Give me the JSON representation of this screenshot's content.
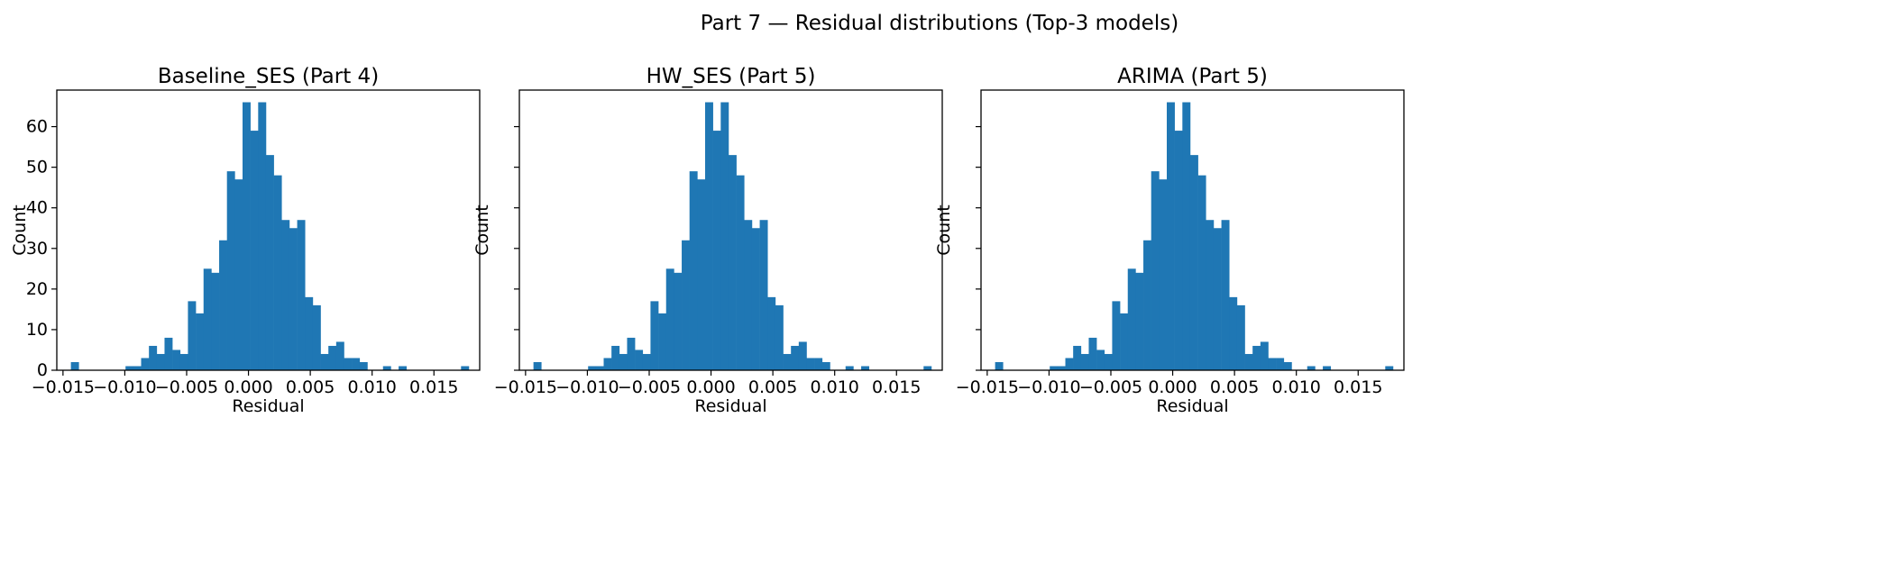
{
  "figure": {
    "suptitle": "Part 7 — Residual distributions (Top-3 models)"
  },
  "chart_data": [
    {
      "type": "bar",
      "subtype": "histogram",
      "title": "Baseline_SES (Part 4)",
      "xlabel": "Residual",
      "ylabel": "Count",
      "xlim": [
        -0.0155,
        0.0187
      ],
      "ylim": [
        0,
        69
      ],
      "xticks": [
        -0.015,
        -0.01,
        -0.005,
        0.0,
        0.005,
        0.01,
        0.015
      ],
      "xtick_labels": [
        "−0.015",
        "−0.010",
        "−0.005",
        "0.000",
        "0.005",
        "0.010",
        "0.015"
      ],
      "yticks": [
        0,
        10,
        20,
        30,
        40,
        50,
        60
      ],
      "ytick_labels": [
        "0",
        "10",
        "20",
        "30",
        "40",
        "50",
        "60"
      ],
      "show_yticklabels": true,
      "bin_start": -0.01436,
      "bin_width": 0.000631,
      "counts": [
        2,
        0,
        0,
        0,
        0,
        0,
        0,
        1,
        1,
        3,
        6,
        4,
        8,
        5,
        4,
        17,
        14,
        25,
        24,
        32,
        49,
        47,
        66,
        59,
        66,
        53,
        48,
        37,
        35,
        37,
        18,
        16,
        4,
        6,
        7,
        3,
        3,
        2,
        0,
        0,
        1,
        0,
        1,
        0,
        0,
        0,
        0,
        0,
        0,
        0,
        1
      ],
      "color": "#1f77b4"
    },
    {
      "type": "bar",
      "subtype": "histogram",
      "title": "HW_SES (Part 5)",
      "xlabel": "Residual",
      "ylabel": "Count",
      "xlim": [
        -0.0155,
        0.0187
      ],
      "ylim": [
        0,
        69
      ],
      "xticks": [
        -0.015,
        -0.01,
        -0.005,
        0.0,
        0.005,
        0.01,
        0.015
      ],
      "xtick_labels": [
        "−0.015",
        "−0.010",
        "−0.005",
        "0.000",
        "0.005",
        "0.010",
        "0.015"
      ],
      "yticks": [
        0,
        10,
        20,
        30,
        40,
        50,
        60
      ],
      "ytick_labels": [
        "0",
        "10",
        "20",
        "30",
        "40",
        "50",
        "60"
      ],
      "show_yticklabels": false,
      "bin_start": -0.01436,
      "bin_width": 0.000631,
      "counts": [
        2,
        0,
        0,
        0,
        0,
        0,
        0,
        1,
        1,
        3,
        6,
        4,
        8,
        5,
        4,
        17,
        14,
        25,
        24,
        32,
        49,
        47,
        66,
        59,
        66,
        53,
        48,
        37,
        35,
        37,
        18,
        16,
        4,
        6,
        7,
        3,
        3,
        2,
        0,
        0,
        1,
        0,
        1,
        0,
        0,
        0,
        0,
        0,
        0,
        0,
        1
      ],
      "color": "#1f77b4"
    },
    {
      "type": "bar",
      "subtype": "histogram",
      "title": "ARIMA (Part 5)",
      "xlabel": "Residual",
      "ylabel": "Count",
      "xlim": [
        -0.0155,
        0.0187
      ],
      "ylim": [
        0,
        69
      ],
      "xticks": [
        -0.015,
        -0.01,
        -0.005,
        0.0,
        0.005,
        0.01,
        0.015
      ],
      "xtick_labels": [
        "−0.015",
        "−0.010",
        "−0.005",
        "0.000",
        "0.005",
        "0.010",
        "0.015"
      ],
      "yticks": [
        0,
        10,
        20,
        30,
        40,
        50,
        60
      ],
      "ytick_labels": [
        "0",
        "10",
        "20",
        "30",
        "40",
        "50",
        "60"
      ],
      "show_yticklabels": false,
      "bin_start": -0.01436,
      "bin_width": 0.000631,
      "counts": [
        2,
        0,
        0,
        0,
        0,
        0,
        0,
        1,
        1,
        3,
        6,
        4,
        8,
        5,
        4,
        17,
        14,
        25,
        24,
        32,
        49,
        47,
        66,
        59,
        66,
        53,
        48,
        37,
        35,
        37,
        18,
        16,
        4,
        6,
        7,
        3,
        3,
        2,
        0,
        0,
        1,
        0,
        1,
        0,
        0,
        0,
        0,
        0,
        0,
        0,
        1
      ],
      "color": "#1f77b4"
    }
  ]
}
